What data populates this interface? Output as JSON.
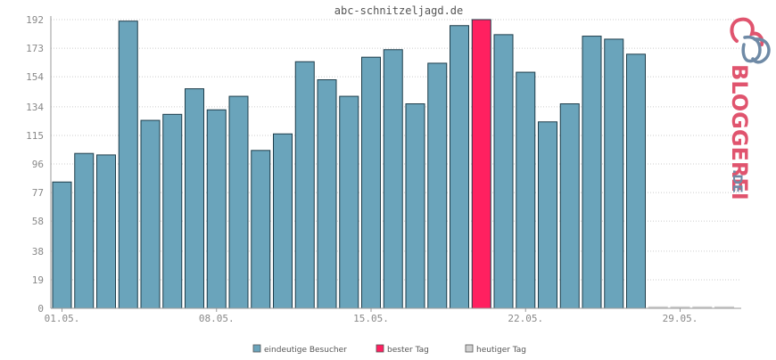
{
  "chart_data": {
    "type": "bar",
    "title": "abc-schnitzeljagd.de",
    "categories": [
      "01.05.",
      "02.05.",
      "03.05.",
      "04.05.",
      "05.05.",
      "06.05.",
      "07.05.",
      "08.05.",
      "09.05.",
      "10.05.",
      "11.05.",
      "12.05.",
      "13.05.",
      "14.05.",
      "15.05.",
      "16.05.",
      "17.05.",
      "18.05.",
      "19.05.",
      "20.05.",
      "21.05.",
      "22.05.",
      "23.05.",
      "24.05.",
      "25.05.",
      "26.05.",
      "27.05.",
      "28.05.",
      "29.05.",
      "30.05.",
      "31.05."
    ],
    "x_tick_labels": [
      "01.05.",
      "08.05.",
      "15.05.",
      "22.05.",
      "29.05."
    ],
    "y_ticks": [
      0,
      19,
      38,
      58,
      77,
      96,
      115,
      134,
      154,
      173,
      192
    ],
    "ylim": [
      0,
      192
    ],
    "series": [
      {
        "name": "eindeutige Besucher",
        "color": "#6aa4bb",
        "values": [
          84,
          103,
          102,
          191,
          125,
          129,
          146,
          132,
          141,
          105,
          116,
          164,
          152,
          141,
          167,
          172,
          136,
          163,
          188,
          192,
          182,
          157,
          124,
          136,
          181,
          179,
          169,
          1,
          1,
          1,
          1
        ]
      }
    ],
    "best_day_index": 19,
    "colors": {
      "visitors": "#6aa4bb",
      "best_day": "#ff2060",
      "today": "#d0d0d0",
      "bar_outline": "#1e3d4a",
      "grid": "#cccccc"
    },
    "grid": true,
    "legend": [
      {
        "label": "eindeutige Besucher",
        "color": "#6aa4bb"
      },
      {
        "label": "bester Tag",
        "color": "#ff2060"
      },
      {
        "label": "heutiger Tag",
        "color": "#d0d0d0"
      }
    ],
    "legend_position": "bottom"
  },
  "brand": {
    "main": "BLOGGEREI",
    "suffix": ".DE"
  }
}
